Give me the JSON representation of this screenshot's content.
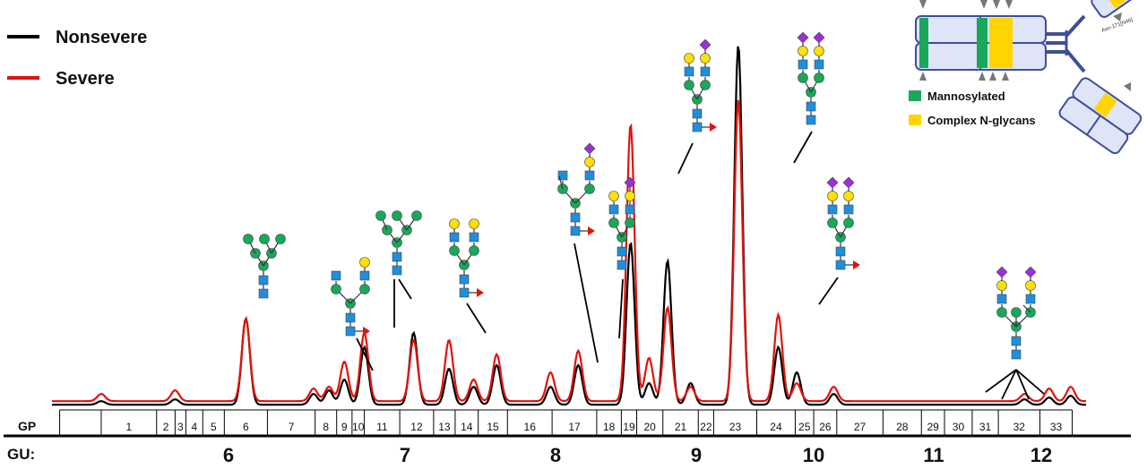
{
  "chart_data": {
    "type": "line",
    "title": "",
    "xlabel": "",
    "ylabel": "",
    "gu_axis_label": "GU:",
    "gu_ticks": [
      6,
      7,
      8,
      9,
      10,
      11,
      12
    ],
    "gp_axis_label": "GP",
    "gp_labels": [
      "1",
      "2",
      "3",
      "4",
      "5",
      "6",
      "7",
      "8",
      "9",
      "10",
      "11",
      "12",
      "13",
      "14",
      "15",
      "16",
      "17",
      "18",
      "19",
      "20",
      "21",
      "22",
      "23",
      "24",
      "25",
      "26",
      "27",
      "28",
      "29",
      "30",
      "31",
      "32",
      "33"
    ],
    "gp_boundaries_gu": [
      5.05,
      5.32,
      5.68,
      5.8,
      5.87,
      5.98,
      6.12,
      6.4,
      6.71,
      6.85,
      6.95,
      7.03,
      7.26,
      7.48,
      7.62,
      7.77,
      7.96,
      8.25,
      8.54,
      8.7,
      8.8,
      8.97,
      9.2,
      9.3,
      9.58,
      9.83,
      9.95,
      10.1,
      10.4,
      10.65,
      10.8,
      10.98,
      11.15,
      11.42,
      11.63
    ],
    "x_range": [
      5.0,
      11.72
    ],
    "y_range": [
      0,
      100
    ],
    "peaks": {
      "x": [
        5.32,
        5.8,
        6.26,
        6.7,
        6.8,
        6.9,
        7.03,
        7.35,
        7.58,
        7.74,
        7.89,
        8.24,
        8.42,
        8.76,
        8.88,
        9.0,
        9.15,
        9.46,
        9.72,
        9.84,
        10.08,
        11.32,
        11.48,
        11.62
      ],
      "nonsevere": [
        1,
        1.5,
        24,
        3,
        4,
        7,
        16,
        20,
        10,
        5,
        11,
        5,
        11,
        45,
        6,
        40,
        6,
        100,
        16,
        9,
        3,
        1.5,
        2,
        2.5
      ],
      "severe": [
        2,
        3,
        23,
        3.5,
        4,
        11,
        19,
        17,
        17,
        6,
        13,
        8,
        14,
        77,
        12,
        26,
        4,
        84,
        24,
        5,
        4,
        2,
        3.5,
        4
      ]
    },
    "baseline": {
      "nonsevere": 1.2,
      "severe": 2.2
    },
    "series": [
      {
        "name": "Nonsevere",
        "color": "#000000"
      },
      {
        "name": "Severe",
        "color": "#e3120b"
      }
    ],
    "legend_position": "top-left"
  },
  "inset": {
    "legend": [
      {
        "label": "Mannosylated",
        "color": "#19a85b"
      },
      {
        "label": "Complex N-glycans",
        "color": "#ffd400"
      }
    ],
    "site_label": "Asn-171[N46]"
  },
  "glycans": [
    {
      "type": "man5",
      "gu": 6.26
    },
    {
      "type": "hybrid",
      "gu": 6.84
    },
    {
      "type": "man6",
      "gu": 7.16
    },
    {
      "type": "g2f",
      "gu": 7.66
    },
    {
      "type": "hybrid-s",
      "gu": 8.14
    },
    {
      "type": "g2fs",
      "gu": 8.44
    },
    {
      "type": "g2s",
      "gu": 8.99
    },
    {
      "type": "g2s2",
      "gu": 9.74
    },
    {
      "type": "g2fs2",
      "gu": 10.12
    },
    {
      "type": "g3s3",
      "gu": 11.47
    }
  ],
  "colors": {
    "glcnac": "#1f8fdd",
    "mannose": "#19a85b",
    "galactose": "#ffe100",
    "sialic": "#9b30d9",
    "fucose": "#e3120b"
  }
}
